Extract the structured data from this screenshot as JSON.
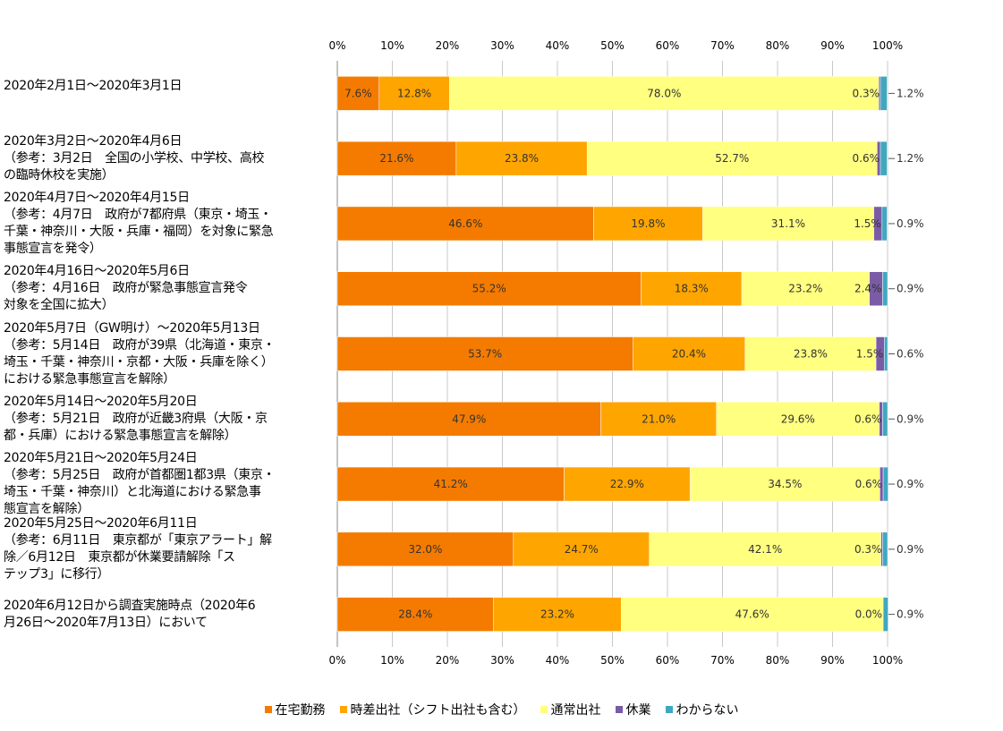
{
  "chart_data": {
    "type": "bar",
    "orientation": "horizontal",
    "stacked": true,
    "percent": true,
    "xlim": [
      0,
      100
    ],
    "x_ticks": [
      "0%",
      "10%",
      "20%",
      "30%",
      "40%",
      "50%",
      "60%",
      "70%",
      "80%",
      "90%",
      "100%"
    ],
    "grid": true,
    "legend_position": "bottom",
    "categories": [
      "2020年2月1日～2020年3月1日",
      "2020年3月2日～2020年4月6日\n（参考：3月2日　全国の小学校、中学校、高校\nの臨時休校を実施）",
      "2020年4月7日～2020年4月15日\n（参考：4月7日　政府が7都府県（東京・埼玉・\n千葉・神奈川・大阪・兵庫・福岡）を対象に緊急\n事態宣言を発令）",
      "2020年4月16日～2020年5月6日\n（参考：4月16日　政府が緊急事態宣言発令\n対象を全国に拡大）",
      "2020年5月7日（GW明け）～2020年5月13日\n（参考：5月14日　政府が39県（北海道・東京・\n埼玉・千葉・神奈川・京都・大阪・兵庫を除く）\nにおける緊急事態宣言を解除）",
      "2020年5月14日～2020年5月20日\n（参考：5月21日　政府が近畿3府県（大阪・京\n都・兵庫）における緊急事態宣言を解除）",
      "2020年5月21日～2020年5月24日\n（参考：5月25日　政府が首都圏1都3県（東京・\n埼玉・千葉・神奈川）と北海道における緊急事\n態宣言を解除）",
      "2020年5月25日～2020年6月11日\n（参考：6月11日　東京都が「東京アラート」解\n除／6月12日　東京都が休業要請解除「ス\nテップ3」に移行）",
      "2020年6月12日から調査実施時点（2020年6\n月26日～2020年7月13日）において"
    ],
    "series": [
      {
        "name": "在宅勤務",
        "color": "#F47B00",
        "values": [
          7.6,
          21.6,
          46.6,
          55.2,
          53.7,
          47.9,
          41.2,
          32.0,
          28.4
        ]
      },
      {
        "name": "時差出社（シフト出社も含む）",
        "color": "#FFA500",
        "values": [
          12.8,
          23.8,
          19.8,
          18.3,
          20.4,
          21.0,
          22.9,
          24.7,
          23.2
        ]
      },
      {
        "name": "通常出社",
        "color": "#FFFF80",
        "values": [
          78.0,
          52.7,
          31.1,
          23.2,
          23.8,
          29.6,
          34.5,
          42.1,
          47.6
        ]
      },
      {
        "name": "休業",
        "color": "#7B5BA6",
        "values": [
          0.3,
          0.6,
          1.5,
          2.4,
          1.5,
          0.6,
          0.6,
          0.3,
          0.0
        ]
      },
      {
        "name": "わからない",
        "color": "#3FA8C0",
        "values": [
          1.2,
          1.2,
          0.9,
          0.9,
          0.6,
          0.9,
          0.9,
          0.9,
          0.9
        ]
      }
    ],
    "value_labels": [
      [
        "7.6%",
        "12.8%",
        "78.0%",
        "0.3%",
        "1.2%"
      ],
      [
        "21.6%",
        "23.8%",
        "52.7%",
        "0.6%",
        "1.2%"
      ],
      [
        "46.6%",
        "19.8%",
        "31.1%",
        "1.5%",
        "0.9%"
      ],
      [
        "55.2%",
        "18.3%",
        "23.2%",
        "2.4%",
        "0.9%"
      ],
      [
        "53.7%",
        "20.4%",
        "23.8%",
        "1.5%",
        "0.6%"
      ],
      [
        "47.9%",
        "21.0%",
        "29.6%",
        "0.6%",
        "0.9%"
      ],
      [
        "41.2%",
        "22.9%",
        "34.5%",
        "0.6%",
        "0.9%"
      ],
      [
        "32.0%",
        "24.7%",
        "42.1%",
        "0.3%",
        "0.9%"
      ],
      [
        "28.4%",
        "23.2%",
        "47.6%",
        "0.0%",
        "0.9%"
      ]
    ]
  }
}
